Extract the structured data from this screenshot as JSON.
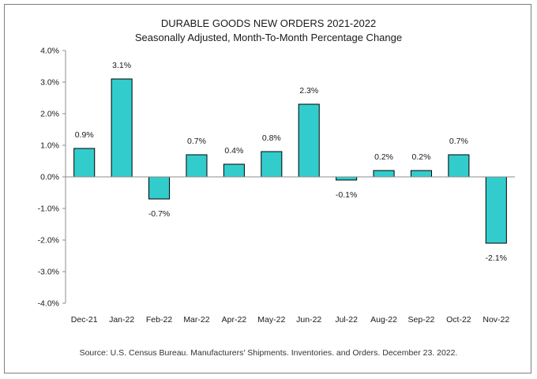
{
  "chart_data": {
    "type": "bar",
    "title": "DURABLE GOODS NEW ORDERS 2021-2022",
    "subtitle": "Seasonally Adjusted,  Month-To-Month Percentage Change",
    "categories": [
      "Dec-21",
      "Jan-22",
      "Feb-22",
      "Mar-22",
      "Apr-22",
      "May-22",
      "Jun-22",
      "Jul-22",
      "Aug-22",
      "Sep-22",
      "Oct-22",
      "Nov-22"
    ],
    "values": [
      0.9,
      3.1,
      -0.7,
      0.7,
      0.4,
      0.8,
      2.3,
      -0.1,
      0.2,
      0.2,
      0.7,
      -2.1
    ],
    "data_labels": [
      "0.9%",
      "3.1%",
      "-0.7%",
      "0.7%",
      "0.4%",
      "0.8%",
      "2.3%",
      "-0.1%",
      "0.2%",
      "0.2%",
      "0.7%",
      "-2.1%"
    ],
    "ylim": [
      -4.0,
      4.0
    ],
    "y_ticks": [
      4.0,
      3.0,
      2.0,
      1.0,
      0.0,
      -1.0,
      -2.0,
      -3.0,
      -4.0
    ],
    "y_tick_labels": [
      "4.0%",
      "3.0%",
      "2.0%",
      "1.0%",
      "0.0%",
      "-1.0%",
      "-2.0%",
      "-3.0%",
      "-4.0%"
    ],
    "xlabel": "",
    "ylabel": "",
    "grid": false,
    "legend": "none",
    "bar_color": "#33cccc",
    "bar_edge_color": "#000000",
    "source": "Source: U.S. Census Bureau. Manufacturers' Shipments. Inventories. and Orders. December 23. 2022."
  }
}
